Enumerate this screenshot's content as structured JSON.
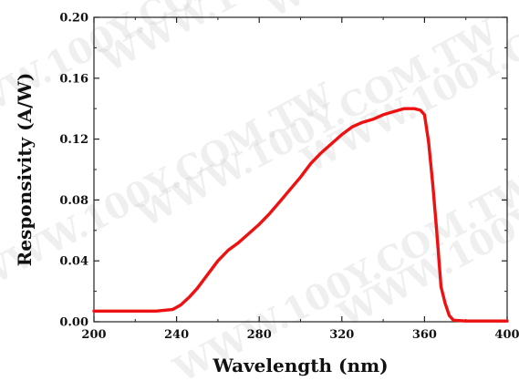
{
  "watermark_text": "WWW.100Y.COM.TW",
  "chart_data": {
    "type": "line",
    "xlabel": "Wavelength (nm)",
    "ylabel": "Responsivity (A/W)",
    "xlim": [
      200,
      400
    ],
    "ylim": [
      0.0,
      0.2
    ],
    "x_ticks": [
      "200",
      "240",
      "280",
      "320",
      "360",
      "400"
    ],
    "y_ticks": [
      "0.00",
      "0.04",
      "0.08",
      "0.12",
      "0.16",
      "0.20"
    ],
    "grid": false,
    "series": [
      {
        "color": "#ee1111",
        "x": [
          200,
          210,
          220,
          230,
          238,
          242,
          246,
          250,
          255,
          260,
          265,
          270,
          275,
          280,
          285,
          290,
          295,
          300,
          305,
          310,
          315,
          320,
          325,
          330,
          335,
          340,
          345,
          350,
          355,
          358,
          360,
          362,
          364,
          366,
          368,
          370,
          372,
          374,
          380,
          390,
          400
        ],
        "y": [
          0.007,
          0.007,
          0.007,
          0.007,
          0.008,
          0.011,
          0.016,
          0.022,
          0.031,
          0.04,
          0.047,
          0.052,
          0.058,
          0.064,
          0.071,
          0.079,
          0.087,
          0.095,
          0.104,
          0.111,
          0.117,
          0.123,
          0.128,
          0.131,
          0.133,
          0.136,
          0.138,
          0.14,
          0.14,
          0.139,
          0.136,
          0.118,
          0.09,
          0.058,
          0.023,
          0.012,
          0.004,
          0.001,
          0.0005,
          0.0005,
          0.0005
        ]
      }
    ]
  }
}
